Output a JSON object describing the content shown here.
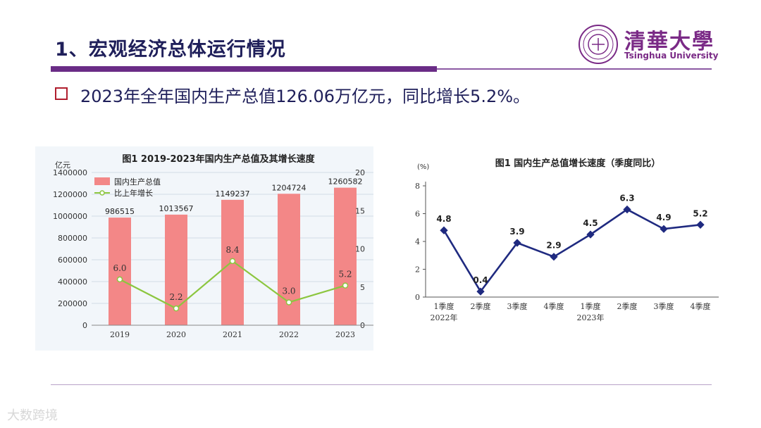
{
  "slide": {
    "title": "1、宏观经济总体运行情况",
    "bullet": "2023年全年国内生产总值126.06万亿元，同比增长5.2%。",
    "watermark": "大数跨境"
  },
  "logo": {
    "cn": "清華大學",
    "en": "Tsinghua University"
  },
  "colors": {
    "accent": "#6a2c86",
    "bar": "#f38787",
    "growth_line": "#8cc63f",
    "quarter_line": "#1f2a80",
    "bullet": "#b01e2e"
  },
  "chart_data": [
    {
      "type": "bar",
      "title": "图1  2019-2023年国内生产总值及其增长速度",
      "ylabel": "亿元",
      "y2label": "%",
      "categories": [
        "2019",
        "2020",
        "2021",
        "2022",
        "2023"
      ],
      "ylim": [
        0,
        1400000
      ],
      "y2lim": [
        0,
        20
      ],
      "yticks": [
        "0",
        "200000",
        "400000",
        "600000",
        "800000",
        "1000000",
        "1200000",
        "1400000"
      ],
      "y2ticks": [
        "0",
        "5",
        "10",
        "15",
        "20"
      ],
      "series": [
        {
          "name": "国内生产总值",
          "type": "bar",
          "values": [
            986515,
            1013567,
            1149237,
            1204724,
            1260582
          ],
          "labels": [
            "986515",
            "1013567",
            "1149237",
            "1204724",
            "1260582"
          ]
        },
        {
          "name": "比上年增长",
          "type": "line",
          "axis": "right",
          "values": [
            6.0,
            2.2,
            8.4,
            3.0,
            5.2
          ],
          "labels": [
            "6.0",
            "2.2",
            "8.4",
            "3.0",
            "5.2"
          ]
        }
      ]
    },
    {
      "type": "line",
      "title": "图1  国内生产总值增长速度（季度同比）",
      "ylabel": "(%)",
      "ylim": [
        0,
        8
      ],
      "yticks": [
        "0",
        "2",
        "4",
        "6",
        "8"
      ],
      "categories": [
        "1季度",
        "2季度",
        "3季度",
        "4季度",
        "1季度",
        "2季度",
        "3季度",
        "4季度"
      ],
      "year_labels": [
        "2022年",
        "2023年"
      ],
      "values": [
        4.8,
        0.4,
        3.9,
        2.9,
        4.5,
        6.3,
        4.9,
        5.2
      ],
      "labels": [
        "4.8",
        "0.4",
        "3.9",
        "2.9",
        "4.5",
        "6.3",
        "4.9",
        "5.2"
      ]
    }
  ]
}
